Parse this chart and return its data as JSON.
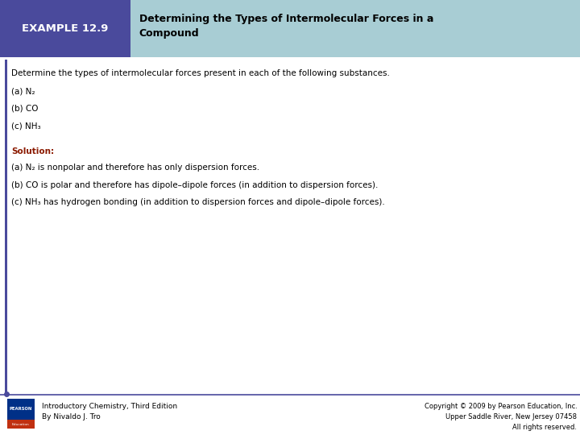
{
  "header_bg_color": "#a8cdd4",
  "header_box_color": "#4a4a9c",
  "header_label": "EXAMPLE 12.9",
  "header_label_color": "#ffffff",
  "header_title": "Determining the Types of Intermolecular Forces in a\nCompound",
  "header_title_text_color": "#000000",
  "bg_color": "#ffffff",
  "body_text_color": "#000000",
  "solution_color": "#8B1a00",
  "left_bar_color": "#4a4a9c",
  "footer_line_color": "#4a4a9c",
  "intro_line": "Determine the types of intermolecular forces present in each of the following substances.",
  "items": [
    "(a) N₂",
    "(b) CO",
    "(c) NH₃"
  ],
  "solution_label": "Solution:",
  "solution_lines": [
    "(a) N₂ is nonpolar and therefore has only dispersion forces.",
    "(b) CO is polar and therefore has dipole–dipole forces (in addition to dispersion forces).",
    "(c) NH₃ has hydrogen bonding (in addition to dispersion forces and dipole–dipole forces)."
  ],
  "footer_left_line1": "Introductory Chemistry, Third Edition",
  "footer_left_line2": "By Nivaldo J. Tro",
  "footer_right": "Copyright © 2009 by Pearson Education, Inc.\nUpper Saddle River, New Jersey 07458\nAll rights reserved.",
  "pearson_box_color1": "#003087",
  "pearson_box_color2": "#c03010"
}
